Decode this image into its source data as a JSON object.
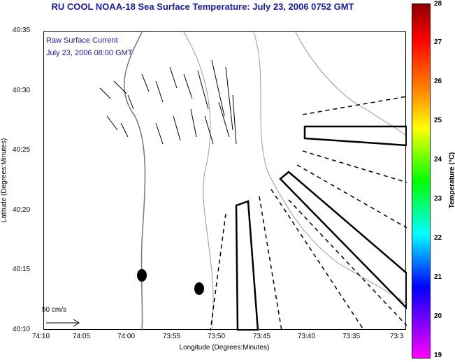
{
  "title": "RU COOL  NOAA-18  Sea Surface Temperature:  July 23, 2006 0752 GMT",
  "legend": {
    "line1": "Raw Surface Current",
    "line2": "July 23, 2006 08:00 GMT"
  },
  "axes": {
    "xlabel": "Longitude (Degrees:Minutes)",
    "ylabel": "Latitude (Degrees:Minutes)",
    "xticks": [
      "74:10",
      "74:05",
      "74:00",
      "73:55",
      "73:50",
      "73:45",
      "73:40",
      "73:35",
      "73:3"
    ],
    "yticks": [
      "40:35",
      "40:30",
      "40:25",
      "40:20",
      "40:15",
      "40:10"
    ]
  },
  "colorbar": {
    "label": "Temperature (°C)",
    "ticks": [
      "28",
      "27",
      "26",
      "25",
      "24",
      "23",
      "22",
      "21",
      "20",
      "19"
    ],
    "colors": [
      "#8b0000",
      "#ff0000",
      "#ff8c00",
      "#ffff00",
      "#00ff00",
      "#00ffff",
      "#0000ff",
      "#7f00ff",
      "#ff00ff"
    ]
  },
  "scale_label": "50 cm/s"
}
